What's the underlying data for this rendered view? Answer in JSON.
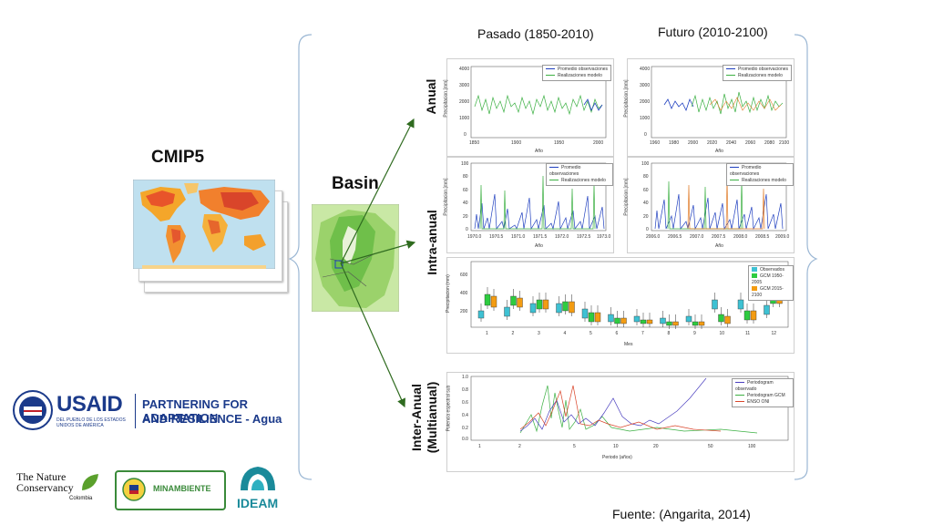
{
  "labels": {
    "cmip5": "CMIP5",
    "basin": "Basin",
    "past": "Pasado (1850-2010)",
    "future": "Futuro (2010-2100)",
    "anual": "Anual",
    "intra": "Intra-anual",
    "inter_1": "Inter-Anual",
    "inter_2": "(Multianual)",
    "source": "Fuente: (Angarita, 2014)"
  },
  "anual_legend": [
    "Promedio observaciones",
    "Realizaciones modelo"
  ],
  "anual_past": {
    "ylabel": "Precipitacion [mm]",
    "xlabel": "Año",
    "xticks": [
      "1850",
      "1900",
      "1950",
      "2000"
    ],
    "yticks": [
      "4000",
      "3000",
      "2000",
      "1000",
      "0"
    ]
  },
  "anual_future": {
    "ylabel": "Precipitacion [mm]",
    "xlabel": "Año",
    "xticks": [
      "1960",
      "1980",
      "2000",
      "2020",
      "2040",
      "2060",
      "2080",
      "2100"
    ],
    "yticks": [
      "4000",
      "3000",
      "2000",
      "1000",
      "0"
    ]
  },
  "intra_past": {
    "ylabel": "Precipitacion [mm]",
    "xlabel": "Año",
    "xticks": [
      "1970.0",
      "1970.5",
      "1971.0",
      "1971.5",
      "1972.0",
      "1972.5",
      "1973.0"
    ],
    "yticks": [
      "100",
      "80",
      "60",
      "40",
      "20",
      "0"
    ]
  },
  "intra_future": {
    "ylabel": "Precipitacion [mm]",
    "xlabel": "Año",
    "xticks": [
      "2006.0",
      "2006.5",
      "2007.0",
      "2007.5",
      "2008.0",
      "2008.5",
      "2009.0"
    ],
    "yticks": [
      "100",
      "80",
      "60",
      "40",
      "20",
      "0"
    ]
  },
  "box": {
    "legend": [
      "Observados",
      "GCM 1950-2005",
      "GCM 2015-2100"
    ],
    "ylabel": "Precipitacion (mm)",
    "xlabel": "Mes",
    "months": [
      "1",
      "2",
      "3",
      "4",
      "5",
      "6",
      "7",
      "8",
      "9",
      "10",
      "11",
      "12"
    ],
    "yticks": [
      "600",
      "400",
      "200"
    ],
    "colors": [
      "#3ec1d3",
      "#2ecc40",
      "#f39c12"
    ]
  },
  "perio": {
    "legend": [
      "Periodogram observado",
      "Periodogram GCM",
      "ENSO ONI"
    ],
    "ylabel": "Potencia espectral sub",
    "xlabel": "Periodo (años)",
    "xticks": [
      "1",
      "2",
      "5",
      "10",
      "20",
      "50",
      "100"
    ],
    "yticks": [
      "1.0",
      "0.8",
      "0.6",
      "0.4",
      "0.2",
      "0.0"
    ]
  },
  "logos": {
    "usaid_name": "USAID",
    "usaid_sub": "DEL PUEBLO DE LOS ESTADOS UNIDOS DE AMÉRICA",
    "partnering_1": "PARTNERING FOR ADAPTATION",
    "partnering_2": "AND RESILIENCE - Agua",
    "tnc_1": "The Nature",
    "tnc_2": "Conservancy",
    "tnc_3": "Colombia",
    "minambiente": "MINAMBIENTE",
    "ideam": "IDEAM"
  },
  "colors": {
    "obs": "#1f3fbf",
    "model": "#3cb043",
    "orange": "#e07b28",
    "arrow": "#2f6b1f",
    "bracket": "#9bb7d4"
  }
}
